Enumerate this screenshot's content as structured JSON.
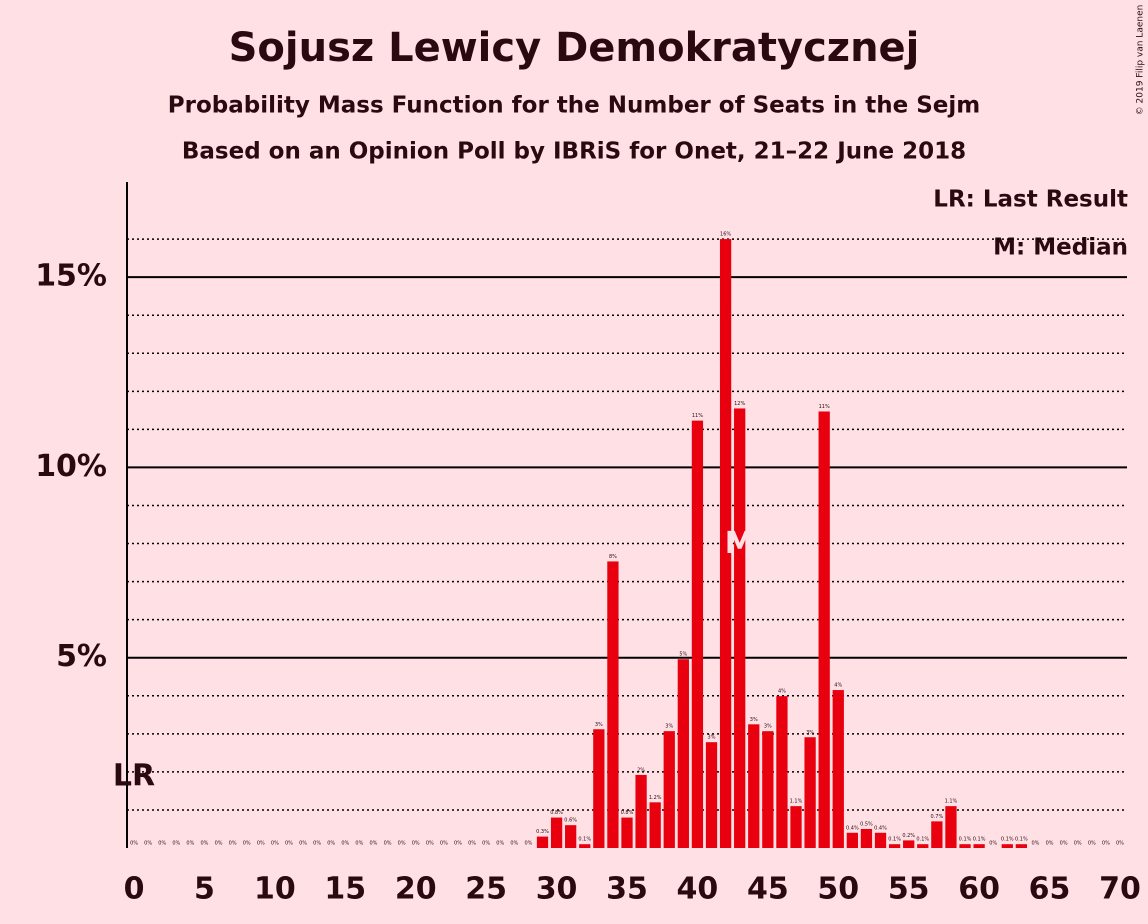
{
  "chart_data": {
    "type": "bar",
    "title": "Sojusz Lewicy Demokratycznej",
    "subtitle": "Probability Mass Function for the Number of Seats in the Sejm",
    "subtitle_2": "Based on an Opinion Poll by IBRiS for Onet, 21–22 June 2018",
    "credit": "© 2019 Filip van Laenen",
    "legend": [
      "LR: Last Result",
      "M: Median"
    ],
    "color": "#e8000e",
    "x": [
      0,
      1,
      2,
      3,
      4,
      5,
      6,
      7,
      8,
      9,
      10,
      11,
      12,
      13,
      14,
      15,
      16,
      17,
      18,
      19,
      20,
      21,
      22,
      23,
      24,
      25,
      26,
      27,
      28,
      29,
      30,
      31,
      32,
      33,
      34,
      35,
      36,
      37,
      38,
      39,
      40,
      41,
      42,
      43,
      44,
      45,
      46,
      47,
      48,
      49,
      50,
      51,
      52,
      53,
      54,
      55,
      56,
      57,
      58,
      59,
      60,
      61,
      62,
      63,
      64,
      65,
      66,
      67,
      68,
      69,
      70
    ],
    "values": [
      0,
      0,
      0,
      0,
      0,
      0,
      0,
      0,
      0,
      0,
      0,
      0,
      0,
      0,
      0,
      0,
      0,
      0,
      0,
      0,
      0,
      0,
      0,
      0,
      0,
      0,
      0,
      0,
      0,
      0.3,
      0.8,
      0.6,
      0.1,
      3.12,
      7.53,
      0.8,
      1.92,
      1.2,
      3.07,
      4.96,
      11.23,
      2.78,
      16.0,
      11.55,
      3.25,
      3.07,
      3.99,
      1.1,
      2.91,
      11.47,
      4.15,
      0.4,
      0.5,
      0.4,
      0.1,
      0.2,
      0.1,
      0.7,
      1.1,
      0.1,
      0.1,
      0,
      0.1,
      0.1,
      0,
      0,
      0,
      0,
      0,
      0,
      0
    ],
    "value_labels": [
      "0%",
      "0%",
      "0%",
      "0%",
      "0%",
      "0%",
      "0%",
      "0%",
      "0%",
      "0%",
      "0%",
      "0%",
      "0%",
      "0%",
      "0%",
      "0%",
      "0%",
      "0%",
      "0%",
      "0%",
      "0%",
      "0%",
      "0%",
      "0%",
      "0%",
      "0%",
      "0%",
      "0%",
      "0%",
      "0.3%",
      "0.8%",
      "0.6%",
      "0.1%",
      "3%",
      "8%",
      "0.8%",
      "2%",
      "1.2%",
      "3%",
      "5%",
      "11%",
      "3%",
      "16%",
      "12%",
      "3%",
      "3%",
      "4%",
      "1.1%",
      "3%",
      "11%",
      "4%",
      "0.4%",
      "0.5%",
      "0.4%",
      "0.1%",
      "0.2%",
      "0.1%",
      "0.7%",
      "1.1%",
      "0.1%",
      "0.1%",
      "0%",
      "0.1%",
      "0.1%",
      "0%",
      "0%",
      "0%",
      "0%",
      "0%",
      "0%",
      "0%"
    ],
    "xlim": [
      -0.5,
      70.5
    ],
    "xticks": [
      0,
      5,
      10,
      15,
      20,
      25,
      30,
      35,
      40,
      45,
      50,
      55,
      60,
      65,
      70
    ],
    "ylim": [
      0,
      17.5
    ],
    "yticks": [
      {
        "value": 5,
        "label": "5%"
      },
      {
        "value": 10,
        "label": "10%"
      },
      {
        "value": 15,
        "label": "15%"
      }
    ],
    "minor_yticks": [
      1,
      2,
      3,
      4,
      6,
      7,
      8,
      9,
      11,
      12,
      13,
      14,
      16
    ],
    "grid": true,
    "last_result": {
      "x": 0,
      "label": "LR"
    },
    "median": {
      "x": 43,
      "label": "M"
    }
  }
}
